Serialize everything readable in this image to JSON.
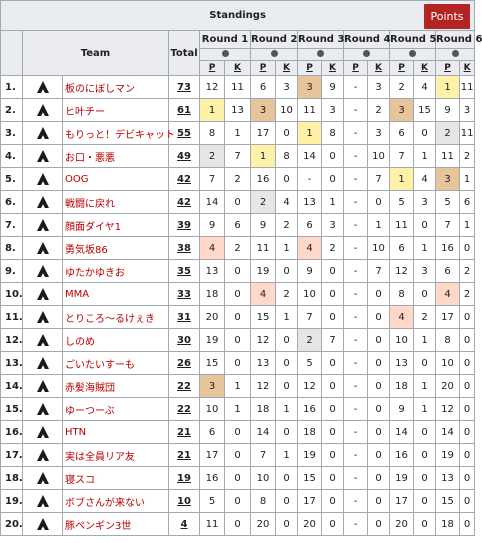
{
  "title": "Standings",
  "points_label": "Points",
  "headers": {
    "team": "Team",
    "total": "Total",
    "rounds": [
      "Round 1",
      "Round 2",
      "Round 3",
      "Round 4",
      "Round 5",
      "Round 6"
    ],
    "p": "P",
    "k": "K"
  },
  "colors": {
    "gold": "#fff2a8",
    "silver": "#e6e6e6",
    "bronze": "#e8c49a",
    "top_highlight": "#ffd8c8",
    "header_bg": "#eaecf0",
    "team_link": "#ba0000",
    "points_button": "#b32424"
  },
  "rows": [
    {
      "rank": "1.",
      "team": "板のにぼしマン",
      "total": "73",
      "cells": [
        [
          "12",
          "11"
        ],
        [
          "6",
          "3"
        ],
        [
          "3",
          "9"
        ],
        [
          "-",
          "3"
        ],
        [
          "2",
          "4"
        ],
        [
          "1",
          "11"
        ]
      ],
      "hl": [
        "",
        "",
        "bronze",
        "",
        "",
        "gold"
      ]
    },
    {
      "rank": "2.",
      "team": "ヒ叶チー",
      "total": "61",
      "cells": [
        [
          "1",
          "13"
        ],
        [
          "3",
          "10"
        ],
        [
          "11",
          "3"
        ],
        [
          "-",
          "2"
        ],
        [
          "3",
          "15"
        ],
        [
          "9",
          "3"
        ]
      ],
      "hl": [
        "gold",
        "bronze",
        "",
        "",
        "bronze",
        ""
      ]
    },
    {
      "rank": "3.",
      "team": "もりっと！デビキャット",
      "total": "55",
      "cells": [
        [
          "8",
          "1"
        ],
        [
          "17",
          "0"
        ],
        [
          "1",
          "8"
        ],
        [
          "-",
          "3"
        ],
        [
          "6",
          "0"
        ],
        [
          "2",
          "11"
        ]
      ],
      "hl": [
        "",
        "",
        "gold",
        "",
        "",
        "silver"
      ]
    },
    {
      "rank": "4.",
      "team": "お口・悪悪",
      "total": "49",
      "cells": [
        [
          "2",
          "7"
        ],
        [
          "1",
          "8"
        ],
        [
          "14",
          "0"
        ],
        [
          "-",
          "10"
        ],
        [
          "7",
          "1"
        ],
        [
          "11",
          "2"
        ]
      ],
      "hl": [
        "silver",
        "gold",
        "",
        "",
        "",
        ""
      ]
    },
    {
      "rank": "5.",
      "team": "OOG",
      "total": "42",
      "cells": [
        [
          "7",
          "2"
        ],
        [
          "16",
          "0"
        ],
        [
          "-",
          "0"
        ],
        [
          "-",
          "7"
        ],
        [
          "1",
          "4"
        ],
        [
          "3",
          "1"
        ]
      ],
      "hl": [
        "",
        "",
        "",
        "",
        "gold",
        "bronze"
      ]
    },
    {
      "rank": "6.",
      "team": "戦闘に戻れ",
      "total": "42",
      "cells": [
        [
          "14",
          "0"
        ],
        [
          "2",
          "4"
        ],
        [
          "13",
          "1"
        ],
        [
          "-",
          "0"
        ],
        [
          "5",
          "3"
        ],
        [
          "5",
          "6"
        ]
      ],
      "hl": [
        "",
        "silver",
        "",
        "",
        "",
        ""
      ]
    },
    {
      "rank": "7.",
      "team": "顔面ダイヤ1",
      "total": "39",
      "cells": [
        [
          "9",
          "6"
        ],
        [
          "9",
          "2"
        ],
        [
          "6",
          "3"
        ],
        [
          "-",
          "1"
        ],
        [
          "11",
          "0"
        ],
        [
          "7",
          "1"
        ]
      ],
      "hl": [
        "",
        "",
        "",
        "",
        "",
        ""
      ]
    },
    {
      "rank": "8.",
      "team": "勇気坂86",
      "total": "38",
      "cells": [
        [
          "4",
          "2"
        ],
        [
          "11",
          "1"
        ],
        [
          "4",
          "2"
        ],
        [
          "-",
          "10"
        ],
        [
          "6",
          "1"
        ],
        [
          "16",
          "0"
        ]
      ],
      "hl": [
        "top_highlight",
        "",
        "top_highlight",
        "",
        "",
        ""
      ]
    },
    {
      "rank": "9.",
      "team": "ゆたかゆきお",
      "total": "35",
      "cells": [
        [
          "13",
          "0"
        ],
        [
          "19",
          "0"
        ],
        [
          "9",
          "0"
        ],
        [
          "-",
          "7"
        ],
        [
          "12",
          "3"
        ],
        [
          "6",
          "2"
        ]
      ],
      "hl": [
        "",
        "",
        "",
        "",
        "",
        ""
      ]
    },
    {
      "rank": "10.",
      "team": "MMA",
      "total": "33",
      "cells": [
        [
          "18",
          "0"
        ],
        [
          "4",
          "2"
        ],
        [
          "10",
          "0"
        ],
        [
          "-",
          "0"
        ],
        [
          "8",
          "0"
        ],
        [
          "4",
          "2"
        ]
      ],
      "hl": [
        "",
        "top_highlight",
        "",
        "",
        "",
        "top_highlight"
      ]
    },
    {
      "rank": "11.",
      "team": "とりころ～るけぇき",
      "total": "31",
      "cells": [
        [
          "20",
          "0"
        ],
        [
          "15",
          "1"
        ],
        [
          "7",
          "0"
        ],
        [
          "-",
          "0"
        ],
        [
          "4",
          "2"
        ],
        [
          "17",
          "0"
        ]
      ],
      "hl": [
        "",
        "",
        "",
        "",
        "top_highlight",
        ""
      ]
    },
    {
      "rank": "12.",
      "team": "しのめ",
      "total": "30",
      "cells": [
        [
          "19",
          "0"
        ],
        [
          "12",
          "0"
        ],
        [
          "2",
          "7"
        ],
        [
          "-",
          "0"
        ],
        [
          "10",
          "1"
        ],
        [
          "8",
          "0"
        ]
      ],
      "hl": [
        "",
        "",
        "silver",
        "",
        "",
        ""
      ]
    },
    {
      "rank": "13.",
      "team": "ごいたいすーも",
      "total": "26",
      "cells": [
        [
          "15",
          "0"
        ],
        [
          "13",
          "0"
        ],
        [
          "5",
          "0"
        ],
        [
          "-",
          "0"
        ],
        [
          "13",
          "0"
        ],
        [
          "10",
          "0"
        ]
      ],
      "hl": [
        "",
        "",
        "",
        "",
        "",
        ""
      ]
    },
    {
      "rank": "14.",
      "team": "赤髪海賊団",
      "total": "22",
      "cells": [
        [
          "3",
          "1"
        ],
        [
          "12",
          "0"
        ],
        [
          "12",
          "0"
        ],
        [
          "-",
          "0"
        ],
        [
          "18",
          "1"
        ],
        [
          "20",
          "0"
        ]
      ],
      "hl": [
        "bronze",
        "",
        "",
        "",
        "",
        ""
      ]
    },
    {
      "rank": "15.",
      "team": "ゆーつーぶ",
      "total": "22",
      "cells": [
        [
          "10",
          "1"
        ],
        [
          "18",
          "1"
        ],
        [
          "16",
          "0"
        ],
        [
          "-",
          "0"
        ],
        [
          "9",
          "1"
        ],
        [
          "12",
          "0"
        ]
      ],
      "hl": [
        "",
        "",
        "",
        "",
        "",
        ""
      ]
    },
    {
      "rank": "16.",
      "team": "HTN",
      "total": "21",
      "cells": [
        [
          "6",
          "0"
        ],
        [
          "14",
          "0"
        ],
        [
          "18",
          "0"
        ],
        [
          "-",
          "0"
        ],
        [
          "14",
          "0"
        ],
        [
          "14",
          "0"
        ]
      ],
      "hl": [
        "",
        "",
        "",
        "",
        "",
        ""
      ]
    },
    {
      "rank": "17.",
      "team": "実は全員リア友",
      "total": "21",
      "cells": [
        [
          "17",
          "0"
        ],
        [
          "7",
          "1"
        ],
        [
          "19",
          "0"
        ],
        [
          "-",
          "0"
        ],
        [
          "16",
          "0"
        ],
        [
          "19",
          "0"
        ]
      ],
      "hl": [
        "",
        "",
        "",
        "",
        "",
        ""
      ]
    },
    {
      "rank": "18.",
      "team": "寝スコ",
      "total": "19",
      "cells": [
        [
          "16",
          "0"
        ],
        [
          "10",
          "0"
        ],
        [
          "15",
          "0"
        ],
        [
          "-",
          "0"
        ],
        [
          "19",
          "0"
        ],
        [
          "13",
          "0"
        ]
      ],
      "hl": [
        "",
        "",
        "",
        "",
        "",
        ""
      ]
    },
    {
      "rank": "19.",
      "team": "ボブさんが来ない",
      "total": "10",
      "cells": [
        [
          "5",
          "0"
        ],
        [
          "8",
          "0"
        ],
        [
          "17",
          "0"
        ],
        [
          "-",
          "0"
        ],
        [
          "17",
          "0"
        ],
        [
          "15",
          "0"
        ]
      ],
      "hl": [
        "",
        "",
        "",
        "",
        "",
        ""
      ]
    },
    {
      "rank": "20.",
      "team": "豚ペンギン3世",
      "total": "4",
      "cells": [
        [
          "11",
          "0"
        ],
        [
          "20",
          "0"
        ],
        [
          "20",
          "0"
        ],
        [
          "-",
          "0"
        ],
        [
          "20",
          "0"
        ],
        [
          "18",
          "0"
        ]
      ],
      "hl": [
        "",
        "",
        "",
        "",
        "",
        ""
      ]
    }
  ]
}
